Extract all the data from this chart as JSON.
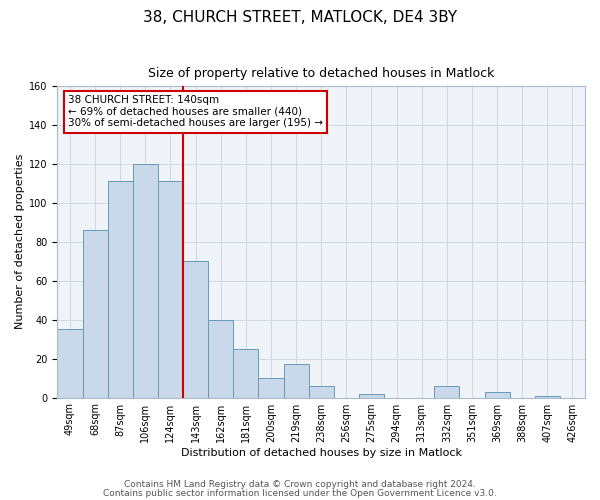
{
  "title": "38, CHURCH STREET, MATLOCK, DE4 3BY",
  "subtitle": "Size of property relative to detached houses in Matlock",
  "xlabel": "Distribution of detached houses by size in Matlock",
  "ylabel": "Number of detached properties",
  "bin_labels": [
    "49sqm",
    "68sqm",
    "87sqm",
    "106sqm",
    "124sqm",
    "143sqm",
    "162sqm",
    "181sqm",
    "200sqm",
    "219sqm",
    "238sqm",
    "256sqm",
    "275sqm",
    "294sqm",
    "313sqm",
    "332sqm",
    "351sqm",
    "369sqm",
    "388sqm",
    "407sqm",
    "426sqm"
  ],
  "bar_heights": [
    35,
    86,
    111,
    120,
    111,
    70,
    40,
    25,
    10,
    17,
    6,
    0,
    2,
    0,
    0,
    6,
    0,
    3,
    0,
    1,
    0
  ],
  "bar_color": "#c9d9ea",
  "bar_edge_color": "#6699bb",
  "vline_color": "#cc0000",
  "annotation_text": "38 CHURCH STREET: 140sqm\n← 69% of detached houses are smaller (440)\n30% of semi-detached houses are larger (195) →",
  "annotation_box_facecolor": "#ffffff",
  "annotation_box_edgecolor": "#cc0000",
  "ylim": [
    0,
    160
  ],
  "yticks": [
    0,
    20,
    40,
    60,
    80,
    100,
    120,
    140,
    160
  ],
  "footer1": "Contains HM Land Registry data © Crown copyright and database right 2024.",
  "footer2": "Contains public sector information licensed under the Open Government Licence v3.0.",
  "fig_bg_color": "#ffffff",
  "plot_bg_color": "#f0f4f8",
  "grid_color": "#c8d4e0",
  "title_fontsize": 11,
  "subtitle_fontsize": 9,
  "axis_label_fontsize": 8,
  "tick_fontsize": 7,
  "footer_fontsize": 6.5
}
